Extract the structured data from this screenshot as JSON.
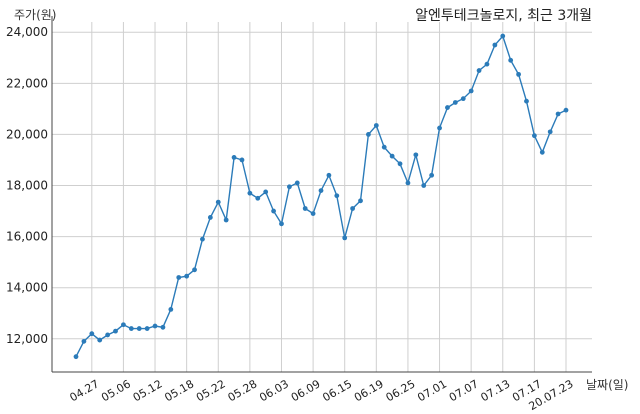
{
  "chart_data": {
    "type": "line",
    "title": "알엔투테크놀로지, 최근 3개월",
    "ylabel": "주가(원)",
    "xlabel": "날짜(일)",
    "ylim": [
      10700,
      24400
    ],
    "yticks": [
      12000,
      14000,
      16000,
      18000,
      20000,
      22000,
      24000
    ],
    "ytick_labels": [
      "12,000",
      "14,000",
      "16,000",
      "18,000",
      "20,000",
      "22,000",
      "24,000"
    ],
    "xtick_labels": [
      "04.27",
      "05.06",
      "05.12",
      "05.18",
      "05.22",
      "05.28",
      "06.03",
      "06.09",
      "06.15",
      "06.19",
      "06.25",
      "07.01",
      "07.07",
      "07.13",
      "07.17",
      "20.07.23"
    ],
    "xtick_indices": [
      2,
      6,
      10,
      14,
      18,
      22,
      26,
      30,
      34,
      38,
      42,
      46,
      50,
      54,
      58,
      62
    ],
    "grid": true,
    "line_color": "#2b7bb9",
    "series": [
      {
        "values": [
          11300,
          11900,
          12200,
          11950,
          12150,
          12300,
          12550,
          12400,
          12400,
          12400,
          12500,
          12450,
          13150,
          14400,
          14450,
          14700,
          15900,
          16750,
          17350,
          16650,
          19100,
          19000,
          17700,
          17500,
          17750,
          17000,
          16500,
          17950,
          18100,
          17100,
          16900,
          17800,
          18400,
          17600,
          15950,
          17100,
          17400,
          20000,
          20350,
          19500,
          19150,
          18850,
          18100,
          19200,
          18000,
          18400,
          20250,
          21050,
          21250,
          21400,
          21700,
          22500,
          22750,
          23500,
          23850,
          22900,
          22350,
          21300,
          19950,
          19300,
          20100,
          20800,
          20950
        ]
      }
    ]
  }
}
